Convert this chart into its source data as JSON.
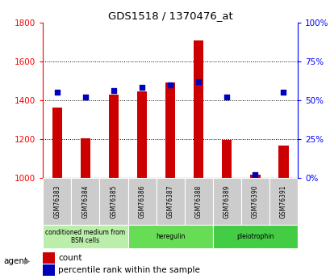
{
  "title": "GDS1518 / 1370476_at",
  "samples": [
    "GSM76383",
    "GSM76384",
    "GSM76385",
    "GSM76386",
    "GSM76387",
    "GSM76388",
    "GSM76389",
    "GSM76390",
    "GSM76391"
  ],
  "counts": [
    1360,
    1205,
    1430,
    1445,
    1490,
    1705,
    1195,
    1015,
    1165
  ],
  "percentiles": [
    55,
    52,
    56,
    58,
    60,
    62,
    52,
    2,
    55
  ],
  "ylim_left": [
    1000,
    1800
  ],
  "ylim_right": [
    0,
    100
  ],
  "yticks_left": [
    1000,
    1200,
    1400,
    1600,
    1800
  ],
  "yticks_right": [
    0,
    25,
    50,
    75,
    100
  ],
  "bar_color": "#cc0000",
  "dot_color": "#0000bb",
  "groups": [
    {
      "label": "conditioned medium from\nBSN cells",
      "start": 0,
      "end": 3,
      "color": "#bbeeaa"
    },
    {
      "label": "heregulin",
      "start": 3,
      "end": 6,
      "color": "#66dd55"
    },
    {
      "label": "pleiotrophin",
      "start": 6,
      "end": 9,
      "color": "#44cc44"
    }
  ],
  "sample_box_color": "#cccccc",
  "bar_width": 0.35,
  "base_value": 1000,
  "plot_bg": "#ffffff",
  "fig_bg": "#ffffff"
}
